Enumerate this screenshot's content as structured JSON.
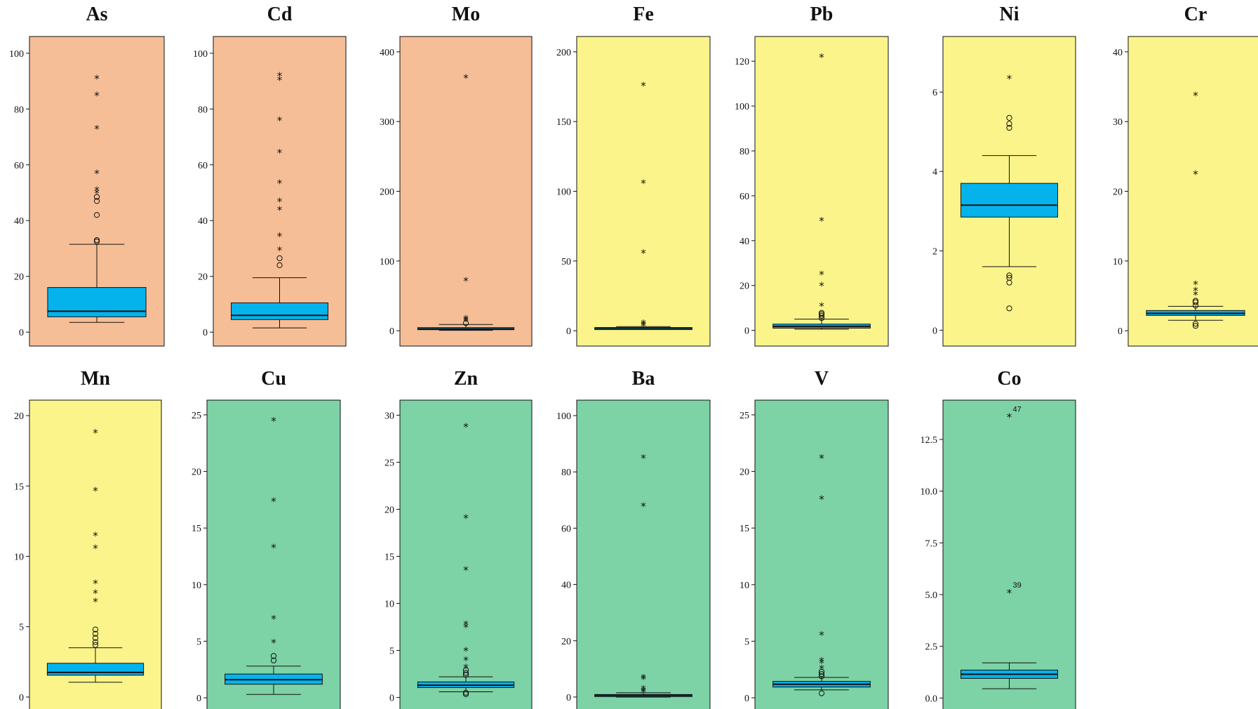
{
  "chart_data": [
    {
      "type": "box",
      "title": "As",
      "group": "orange",
      "ylim": [
        -5,
        106
      ],
      "ticks": [
        0,
        20,
        40,
        60,
        80,
        100
      ],
      "tick_labels": [
        "0",
        "20",
        "40",
        "60",
        "80",
        "100"
      ],
      "box": {
        "whisker_low": 3.5,
        "q1": 5.5,
        "median": 7.5,
        "q3": 16,
        "whisker_high": 31.5
      },
      "outliers": [
        33,
        32.5,
        42,
        47,
        48.5
      ],
      "extremes": [
        50,
        51,
        57,
        73,
        85,
        91
      ],
      "case_labels": []
    },
    {
      "type": "box",
      "title": "Cd",
      "group": "orange",
      "ylim": [
        -5,
        106
      ],
      "ticks": [
        0,
        20,
        40,
        60,
        80,
        100
      ],
      "tick_labels": [
        "0",
        "20",
        "40",
        "60",
        "80",
        "100"
      ],
      "box": {
        "whisker_low": 1.5,
        "q1": 4.5,
        "median": 6,
        "q3": 10.5,
        "whisker_high": 19.5
      },
      "outliers": [
        24,
        26.5
      ],
      "extremes": [
        29.5,
        34.5,
        44,
        47,
        53.5,
        64.5,
        76,
        90.5,
        92
      ],
      "case_labels": []
    },
    {
      "type": "box",
      "title": "Mo",
      "group": "orange",
      "ylim": [
        -22,
        422
      ],
      "ticks": [
        0,
        100,
        200,
        300,
        400
      ],
      "tick_labels": [
        "0",
        "100",
        "200",
        "300",
        "400"
      ],
      "box": {
        "whisker_low": 0.5,
        "q1": 1.5,
        "median": 2.5,
        "q3": 4.5,
        "whisker_high": 9
      },
      "outliers": [
        11
      ],
      "extremes": [
        14,
        16,
        18,
        72,
        363
      ],
      "case_labels": []
    },
    {
      "type": "box",
      "title": "Fe",
      "group": "yellow",
      "ylim": [
        -11,
        211
      ],
      "ticks": [
        0,
        50,
        100,
        150,
        200
      ],
      "tick_labels": [
        "0",
        "50",
        "100",
        "150",
        "200"
      ],
      "box": {
        "whisker_low": 1,
        "q1": 1.4,
        "median": 1.8,
        "q3": 2.3,
        "whisker_high": 3
      },
      "outliers": [],
      "extremes": [
        3.5,
        4.5,
        5.5,
        56,
        106,
        176
      ],
      "case_labels": []
    },
    {
      "type": "box",
      "title": "Pb",
      "group": "yellow",
      "ylim": [
        -7,
        131
      ],
      "ticks": [
        0,
        20,
        40,
        60,
        80,
        100,
        120
      ],
      "tick_labels": [
        "0",
        "20",
        "40",
        "60",
        "80",
        "100",
        "120"
      ],
      "box": {
        "whisker_low": 0.5,
        "q1": 1,
        "median": 1.8,
        "q3": 2.8,
        "whisker_high": 5
      },
      "outliers": [
        5.5,
        6.5,
        7.2,
        7.8
      ],
      "extremes": [
        11,
        20,
        25,
        49,
        122
      ],
      "case_labels": []
    },
    {
      "type": "box",
      "title": "Ni",
      "group": "yellow",
      "ylim": [
        -0.4,
        7.4
      ],
      "ticks": [
        0,
        2,
        4,
        6
      ],
      "tick_labels": [
        "0",
        "2",
        "4",
        "6"
      ],
      "box": {
        "whisker_low": 1.6,
        "q1": 2.85,
        "median": 3.15,
        "q3": 3.7,
        "whisker_high": 4.4
      },
      "outliers": [
        0.55,
        1.2,
        1.32,
        1.38,
        5.1,
        5.2,
        5.35
      ],
      "extremes": [
        6.35
      ],
      "case_labels": []
    },
    {
      "type": "box",
      "title": "Cr",
      "group": "yellow",
      "ylim": [
        -2.2,
        42.2
      ],
      "ticks": [
        0,
        10,
        20,
        30,
        40
      ],
      "tick_labels": [
        "0",
        "10",
        "20",
        "30",
        "40"
      ],
      "box": {
        "whisker_low": 1.5,
        "q1": 2.2,
        "median": 2.5,
        "q3": 2.9,
        "whisker_high": 3.5
      },
      "outliers": [
        0.7,
        1,
        3.6,
        4.1,
        4.3
      ],
      "extremes": [
        5.2,
        5.8,
        6.7,
        22.5,
        33.8
      ],
      "case_labels": []
    },
    {
      "type": "box",
      "title": "Mn",
      "group": "yellow",
      "ylim": [
        -1.1,
        21.1
      ],
      "ticks": [
        0,
        5,
        10,
        15,
        20
      ],
      "tick_labels": [
        "0",
        "5",
        "10",
        "15",
        "20"
      ],
      "box": {
        "whisker_low": 1.05,
        "q1": 1.55,
        "median": 1.75,
        "q3": 2.4,
        "whisker_high": 3.5
      },
      "outliers": [
        3.7,
        3.9,
        4.2,
        4.5,
        4.8
      ],
      "extremes": [
        6.8,
        7.4,
        8.1,
        10.6,
        11.5,
        14.7,
        18.8
      ],
      "case_labels": []
    },
    {
      "type": "box",
      "title": "Cu",
      "group": "green",
      "ylim": [
        -1.3,
        26.3
      ],
      "ticks": [
        0,
        5,
        10,
        15,
        20,
        25
      ],
      "tick_labels": [
        "0",
        "5",
        "10",
        "15",
        "20",
        "25"
      ],
      "box": {
        "whisker_low": 0.3,
        "q1": 1.2,
        "median": 1.6,
        "q3": 2.1,
        "whisker_high": 2.8
      },
      "outliers": [
        3.3,
        3.7
      ],
      "extremes": [
        4.9,
        7,
        13.3,
        17.4,
        24.5
      ],
      "case_labels": []
    },
    {
      "type": "box",
      "title": "Zn",
      "group": "green",
      "ylim": [
        -1.6,
        31.6
      ],
      "ticks": [
        0,
        5,
        10,
        15,
        20,
        25,
        30
      ],
      "tick_labels": [
        "0",
        "5",
        "10",
        "15",
        "20",
        "25",
        "30"
      ],
      "box": {
        "whisker_low": 0.6,
        "q1": 1.05,
        "median": 1.3,
        "q3": 1.65,
        "whisker_high": 2.2
      },
      "outliers": [
        0.35,
        0.5,
        2.4,
        2.6,
        2.9
      ],
      "extremes": [
        3.2,
        4,
        5,
        7.5,
        7.8,
        13.6,
        19.1,
        28.8
      ],
      "case_labels": []
    },
    {
      "type": "box",
      "title": "Ba",
      "group": "green",
      "ylim": [
        -5.5,
        105.5
      ],
      "ticks": [
        0,
        20,
        40,
        60,
        80,
        100
      ],
      "tick_labels": [
        "0",
        "20",
        "40",
        "60",
        "80",
        "100"
      ],
      "box": {
        "whisker_low": 0,
        "q1": 0.3,
        "median": 0.6,
        "q3": 0.9,
        "whisker_high": 1.5
      },
      "outliers": [],
      "extremes": [
        1.8,
        2.4,
        3,
        6.5,
        7,
        68,
        85
      ],
      "case_labels": []
    },
    {
      "type": "box",
      "title": "V",
      "group": "green",
      "ylim": [
        -1.3,
        26.3
      ],
      "ticks": [
        0,
        5,
        10,
        15,
        20,
        25
      ],
      "tick_labels": [
        "0",
        "5",
        "10",
        "15",
        "20",
        "25"
      ],
      "box": {
        "whisker_low": 0.7,
        "q1": 0.95,
        "median": 1.2,
        "q3": 1.45,
        "whisker_high": 1.8
      },
      "outliers": [
        0.4,
        1.9,
        2.1,
        2.3
      ],
      "extremes": [
        2.6,
        3.1,
        3.3,
        5.6,
        17.6,
        21.2
      ],
      "case_labels": []
    },
    {
      "type": "box",
      "title": "Co",
      "group": "green",
      "ylim": [
        -0.7,
        14.4
      ],
      "ticks": [
        0,
        2.5,
        5,
        7.5,
        10,
        12.5
      ],
      "tick_labels": [
        "0.0",
        "2.5",
        "5.0",
        "7.5",
        "10.0",
        "12.5"
      ],
      "box": {
        "whisker_low": 0.45,
        "q1": 0.95,
        "median": 1.15,
        "q3": 1.35,
        "whisker_high": 1.7
      },
      "outliers": [],
      "extremes": [
        5.1,
        13.6
      ],
      "case_labels": [
        {
          "value": 5.1,
          "label": "39"
        },
        {
          "value": 13.6,
          "label": "47"
        }
      ]
    }
  ],
  "colors": {
    "orange": "#f6be96",
    "yellow": "#fbf48a",
    "green": "#7dd2a6",
    "box": "#05b3ec",
    "ink": "#111111"
  }
}
